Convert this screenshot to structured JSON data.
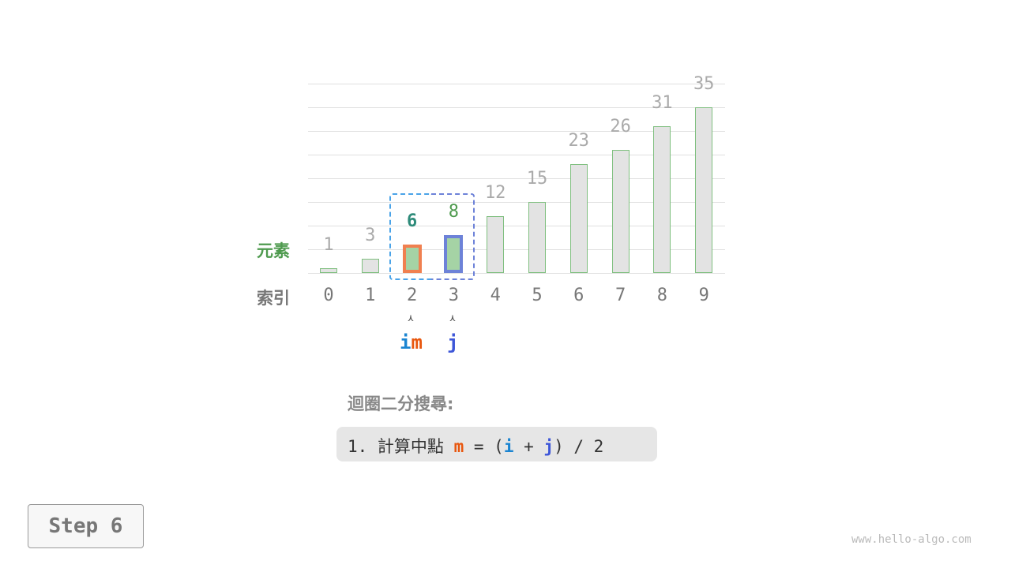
{
  "diagram": {
    "row_labels": {
      "elements": "元素",
      "index": "索引"
    },
    "values": [
      1,
      3,
      6,
      8,
      12,
      15,
      23,
      26,
      31,
      35
    ],
    "indices": [
      "0",
      "1",
      "2",
      "3",
      "4",
      "5",
      "6",
      "7",
      "8",
      "9"
    ],
    "pointers": {
      "i": "i",
      "m": "m",
      "j": "j"
    },
    "pointer_positions": {
      "i": 2,
      "m": 2,
      "j": 3
    },
    "highlighted": [
      2,
      3
    ],
    "search_range": [
      2,
      3
    ],
    "arrow_glyph": "⋏"
  },
  "caption": {
    "title": "迴圈二分搜尋:",
    "step_prefix": "1. 計算中點 ",
    "m": "m",
    "eq": " = (",
    "i": "i",
    "plus": " + ",
    "j": "j",
    "tail": ") / 2"
  },
  "step_label": "Step 6",
  "watermark": "www.hello-algo.com",
  "colors": {
    "i": "#1a84d1",
    "m": "#e8560d",
    "j": "#3d56d8",
    "green": "#4e9a4e",
    "teal": "#2e8b7a",
    "orange_border": "#f08050",
    "blue_border": "#6d82d8"
  }
}
